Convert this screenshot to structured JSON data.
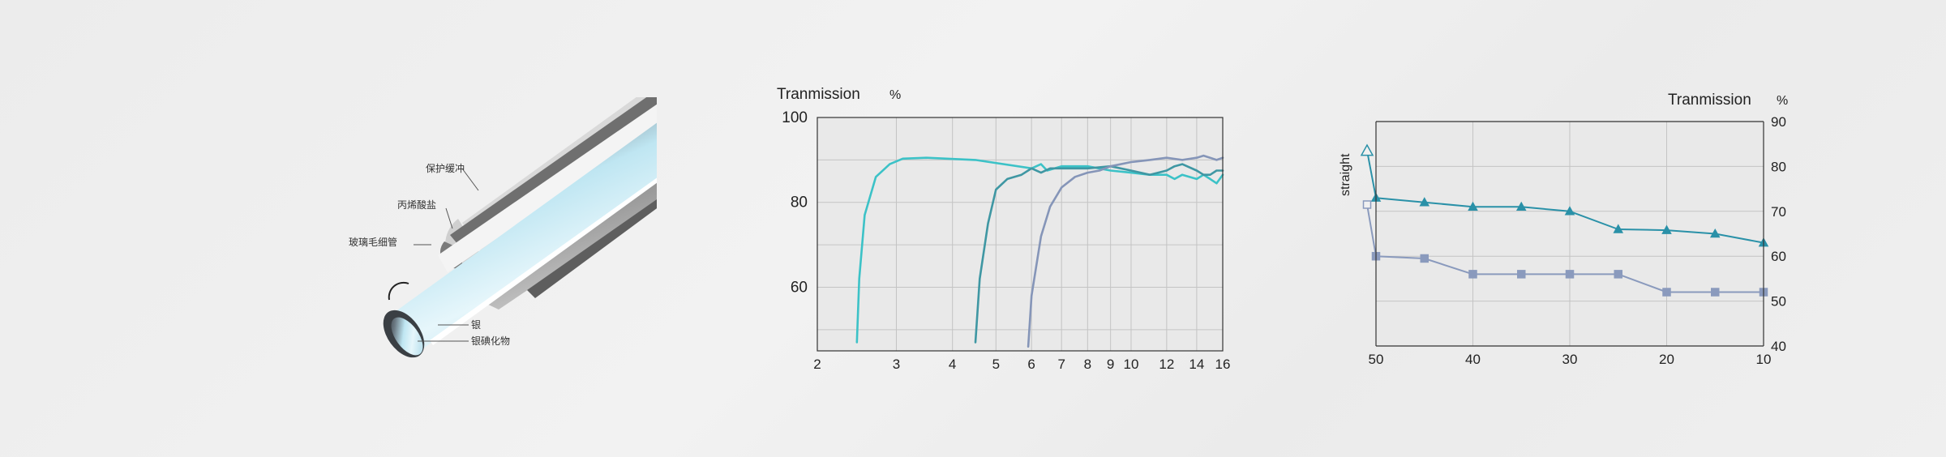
{
  "fiber_diagram": {
    "labels": {
      "buffer": "保护缓冲",
      "acrylate": "丙烯酸盐",
      "glass_capillary": "玻璃毛细管",
      "silver": "银",
      "silver_iodide": "银碘化物"
    }
  },
  "chart_data": [
    {
      "type": "line",
      "title": "Tranmission",
      "unit": "%",
      "xlabel": "",
      "ylabel": "Tranmission %",
      "x_scale": "log",
      "xlim": [
        2,
        16
      ],
      "ylim": [
        45,
        100
      ],
      "x_ticks": [
        2,
        3,
        4,
        5,
        6,
        7,
        8,
        9,
        10,
        12,
        14,
        16
      ],
      "x_tick_labels": [
        "2",
        "3",
        "4",
        "5",
        "6",
        "7",
        "8",
        "9",
        "10",
        "12",
        "14",
        "16"
      ],
      "y_ticks": [
        60,
        80,
        100
      ],
      "y_tick_labels": [
        "60",
        "80",
        "100"
      ],
      "grid": true,
      "colors": [
        "#3cc2c7",
        "#3f97a3",
        "#8595b8"
      ],
      "series": [
        {
          "x": [
            2.45,
            2.48,
            2.55,
            2.7,
            2.9,
            3.1,
            3.5,
            4.5,
            6.0,
            6.3,
            6.5,
            7.0,
            8.0,
            9.0,
            10.0,
            11.0,
            12.0,
            12.5,
            13.0,
            14.0,
            14.5,
            15.0,
            15.5,
            16.0
          ],
          "y": [
            47,
            62,
            77,
            86,
            89,
            90.3,
            90.5,
            90,
            88,
            89,
            87.5,
            88.5,
            88.5,
            87.5,
            87,
            86.5,
            86.5,
            85.5,
            86.5,
            85.5,
            86.5,
            85.5,
            84.5,
            86.5
          ]
        },
        {
          "x": [
            4.5,
            4.6,
            4.8,
            5.0,
            5.3,
            5.7,
            6.0,
            6.3,
            6.6,
            7.0,
            8.0,
            9.0,
            10.0,
            11.0,
            12.0,
            12.5,
            13.0,
            14.0,
            14.5,
            15.0,
            15.5,
            16.0
          ],
          "y": [
            47,
            62,
            75,
            83,
            85.5,
            86.5,
            88,
            87,
            88,
            88,
            88,
            88.5,
            87.5,
            86.5,
            87.5,
            88.5,
            89,
            87.5,
            86.5,
            86.5,
            87.5,
            87.5
          ]
        },
        {
          "x": [
            5.9,
            6.0,
            6.3,
            6.6,
            7.0,
            7.5,
            8.0,
            8.5,
            9.0,
            10.0,
            11.0,
            12.0,
            13.0,
            14.0,
            14.5,
            15.0,
            15.5,
            16.0
          ],
          "y": [
            46,
            58,
            72,
            79,
            83.5,
            86,
            87,
            87.5,
            88.5,
            89.5,
            90,
            90.5,
            90,
            90.5,
            91,
            90.5,
            90,
            90.5
          ]
        }
      ]
    },
    {
      "type": "line",
      "title": "Tranmission",
      "unit": "%",
      "ylabel": "straight",
      "x_reversed": true,
      "xlim": [
        50,
        10
      ],
      "ylim": [
        40,
        90
      ],
      "x_ticks": [
        50,
        40,
        30,
        20,
        10
      ],
      "x_tick_labels": [
        "50",
        "40",
        "30",
        "20",
        "10"
      ],
      "y_ticks": [
        40,
        50,
        60,
        70,
        80,
        90
      ],
      "y_tick_labels": [
        "40",
        "50",
        "60",
        "70",
        "80",
        "90"
      ],
      "grid": true,
      "colors": [
        "#2a91a8",
        "#8a9abd"
      ],
      "series": [
        {
          "marker": "triangle",
          "straight_marker_y": 83.5,
          "x": [
            50,
            45,
            40,
            35,
            30,
            25,
            20,
            15,
            10
          ],
          "y": [
            73,
            72,
            71,
            71,
            70,
            66,
            65.8,
            65,
            63
          ]
        },
        {
          "marker": "square",
          "straight_marker_y": 71.5,
          "x": [
            50,
            45,
            40,
            35,
            30,
            25,
            20,
            15,
            10
          ],
          "y": [
            60,
            59.5,
            56,
            56,
            56,
            56,
            52,
            52,
            52
          ]
        }
      ]
    }
  ]
}
